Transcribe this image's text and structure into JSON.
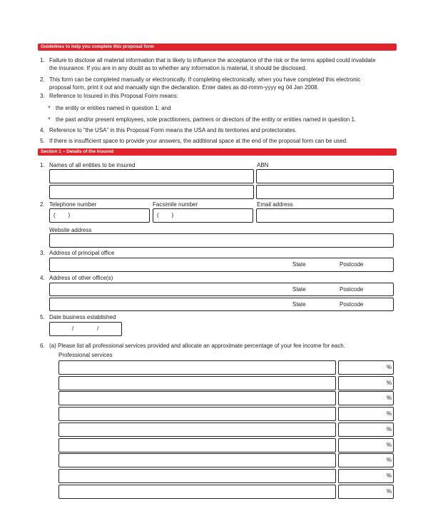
{
  "guidelines": {
    "title": "Guidelines to help you complete this proposal form",
    "items": [
      {
        "num": "1.",
        "line1": "Failure to disclose all material information that is likely to influence the acceptance of the risk or the terms applied could invalidate",
        "line2": "the insurance. If you are in any doubt as to whether any information is material, it should be disclosed."
      },
      {
        "num": "2.",
        "line1": "This form can be completed manually or electronically. If completing electronically, when you have completed this electronic",
        "line2": "proposal form, print it out and manually sign the declaration. Enter dates as dd-mmm-yyyy eg 04 Jan 2008."
      },
      {
        "num": "3.",
        "line1": "Reference to Insured in this Proposal Form means:"
      },
      {
        "num": "4.",
        "line1": "Reference to “the USA” in this Proposal Form means the USA and its territories and protectorates."
      },
      {
        "num": "5.",
        "line1": "If there is insufficient space to provide your answers, the additional space at the end of the proposal form can be used."
      }
    ],
    "bullets": [
      "the entity or entities named in question 1; and",
      "the past and/or present employees, sole practitioners, partners or directors of the entity or entities named in question 1."
    ],
    "bullet_glyph": "▼"
  },
  "section1": {
    "title": "Section 1 – Details of the Insured",
    "q1": {
      "num": "1.",
      "label": "Names of all entities to be insured",
      "abn_label": "ABN"
    },
    "q2": {
      "num": "2.",
      "telephone_label": "Telephone number",
      "fax_label": "Facsimile number",
      "email_label": "Email address",
      "phone_prefix": "(        )",
      "website_label": "Website address"
    },
    "q3": {
      "num": "3.",
      "label": "Address of principal office",
      "state": "State",
      "postcode": "Postcode"
    },
    "q4": {
      "num": "4.",
      "label": "Address of other office(s)",
      "state": "State",
      "postcode": "Postcode"
    },
    "q5": {
      "num": "5.",
      "label": "Date business established",
      "date_sep": "/",
      "date_sep2": "/"
    },
    "q6": {
      "num": "6.",
      "label": "(a)  Please list all professional services provided and allocate an approximate percentage of your fee income for each.",
      "column_label": "Professional services",
      "percent": "%"
    }
  }
}
